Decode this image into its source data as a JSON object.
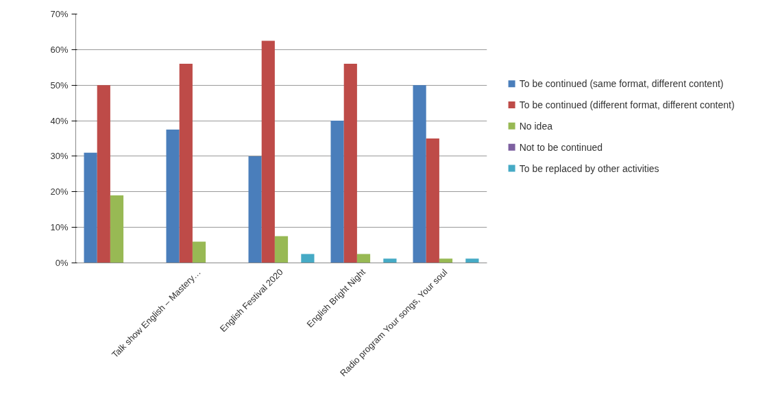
{
  "chart_data": {
    "type": "bar",
    "categories": [
      null,
      "Talk show English – Mastery…",
      "English Festival 2020",
      "English Bright Night",
      "Radio program Your songs, Your soul"
    ],
    "series": [
      {
        "name": "To be continued (same format, different content)",
        "color": "#4a7ebb",
        "values": [
          31,
          37.5,
          30,
          40,
          50
        ]
      },
      {
        "name": "To be continued (different format, different content)",
        "color": "#be4b48",
        "values": [
          50,
          56,
          62.5,
          56,
          35
        ]
      },
      {
        "name": "No idea",
        "color": "#98b954",
        "values": [
          19,
          6,
          7.5,
          2.5,
          1.2
        ]
      },
      {
        "name": "Not to be continued",
        "color": "#7d60a0",
        "values": [
          0,
          0,
          0,
          0,
          0
        ]
      },
      {
        "name": "To be replaced by other activities",
        "color": "#46aac5",
        "values": [
          0,
          0,
          2.5,
          1.2,
          1.2
        ]
      }
    ],
    "ylim": [
      0,
      70
    ],
    "yticks": [
      {
        "value": 0,
        "label": "0%"
      },
      {
        "value": 10,
        "label": "10%"
      },
      {
        "value": 20,
        "label": "20%"
      },
      {
        "value": 30,
        "label": "30%"
      },
      {
        "value": 40,
        "label": "40%"
      },
      {
        "value": 50,
        "label": "50%"
      },
      {
        "value": 60,
        "label": "60%"
      },
      {
        "value": 70,
        "label": "70%"
      }
    ],
    "grid": "y",
    "legend": "right"
  }
}
